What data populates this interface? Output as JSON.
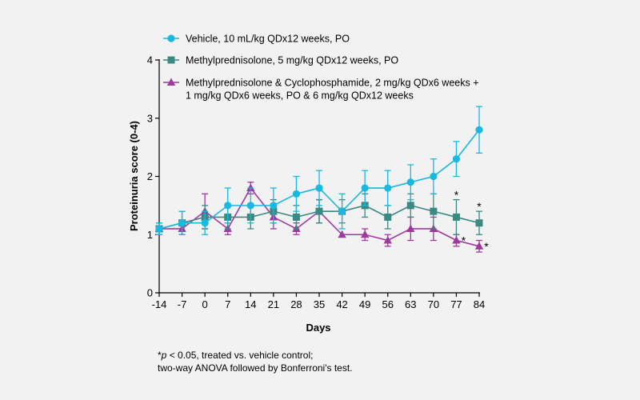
{
  "chart_data": {
    "type": "line",
    "xlabel": "Days",
    "ylabel": "Proteinuria score (0-4)",
    "x_ticks": [
      "-14",
      "-7",
      "0",
      "7",
      "14",
      "21",
      "28",
      "35",
      "42",
      "49",
      "56",
      "63",
      "70",
      "77",
      "84"
    ],
    "y_ticks": [
      "0",
      "1",
      "2",
      "3",
      "4"
    ],
    "xlim": [
      -14,
      84
    ],
    "ylim": [
      0,
      4
    ],
    "grid": false,
    "legend_position": "top-left",
    "x": [
      -14,
      -7,
      0,
      7,
      14,
      21,
      28,
      35,
      42,
      49,
      56,
      63,
      70,
      77,
      84
    ],
    "series": [
      {
        "name": "Vehicle, 10 mL/kg QDx12 weeks, PO",
        "color": "#1ab7e0",
        "marker": "circle",
        "values": [
          1.1,
          1.2,
          1.2,
          1.5,
          1.5,
          1.5,
          1.7,
          1.8,
          1.4,
          1.8,
          1.8,
          1.9,
          2.0,
          2.3,
          2.8
        ],
        "error": [
          0.1,
          0.2,
          0.2,
          0.3,
          0.3,
          0.3,
          0.3,
          0.3,
          0.3,
          0.3,
          0.3,
          0.3,
          0.3,
          0.3,
          0.4
        ],
        "significance_marks": []
      },
      {
        "name": "Methylprednisolone, 5 mg/kg QDx12 weeks, PO",
        "color": "#3a8a83",
        "marker": "square",
        "values": [
          1.1,
          1.2,
          1.3,
          1.3,
          1.3,
          1.4,
          1.3,
          1.4,
          1.4,
          1.5,
          1.3,
          1.5,
          1.4,
          1.3,
          1.2
        ],
        "error": [
          0.1,
          0.2,
          0.2,
          0.2,
          0.2,
          0.2,
          0.2,
          0.2,
          0.2,
          0.2,
          0.2,
          0.2,
          0.3,
          0.3,
          0.2
        ],
        "significance_marks": [
          77,
          84
        ]
      },
      {
        "name": "Methylprednisolone & Cyclophosphamide, 2 mg/kg QDx6 weeks + 1 mg/kg QDx6 weeks, PO & 6 mg/kg QDx12 weeks",
        "color": "#a0399f",
        "marker": "triangle",
        "values": [
          1.1,
          1.1,
          1.4,
          1.1,
          1.8,
          1.3,
          1.1,
          1.4,
          1.0,
          1.0,
          0.9,
          1.1,
          1.1,
          0.9,
          0.8
        ],
        "error": [
          0.1,
          0.1,
          0.3,
          0.1,
          0.1,
          0.2,
          0.1,
          0.2,
          0.0,
          0.1,
          0.1,
          0.2,
          0.2,
          0.1,
          0.1
        ],
        "significance_marks": [
          77,
          84
        ]
      }
    ],
    "legend_lines": [
      [
        "Vehicle, 10 mL/kg QDx12 weeks, PO"
      ],
      [
        "Methylprednisolone, 5 mg/kg QDx12 weeks, PO"
      ],
      [
        "Methylprednisolone & Cyclophosphamide, 2 mg/kg QDx6 weeks +",
        "1 mg/kg QDx6 weeks, PO & 6 mg/kg QDx12 weeks"
      ]
    ],
    "significance_symbol": "*"
  },
  "footnote": {
    "star": "*",
    "p": "p",
    "line1_rest": " < 0.05, treated vs. vehicle control;",
    "line2": "two-way ANOVA followed by Bonferroni's test."
  }
}
